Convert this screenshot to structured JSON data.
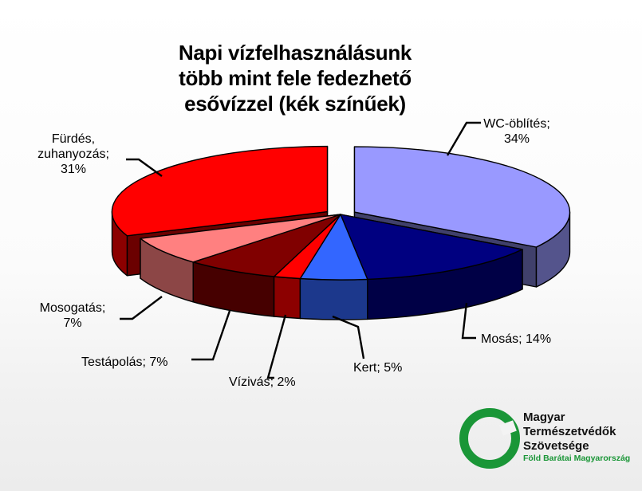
{
  "chart_data": {
    "type": "pie",
    "title": [
      "Napi vízfelhasználásunk",
      "több mint fele fedezhető",
      "esővízzel (kék színűek)"
    ],
    "slices": [
      {
        "name": "WC-öblítés",
        "value": 34,
        "label": [
          "WC-öblítés;",
          "34%"
        ],
        "color": "#9999ff",
        "exploded": true
      },
      {
        "name": "Mosás",
        "value": 14,
        "label": [
          "Mosás; 14%"
        ],
        "color": "#000080",
        "exploded": false
      },
      {
        "name": "Kert",
        "value": 5,
        "label": [
          "Kert; 5%"
        ],
        "color": "#3366ff",
        "exploded": false
      },
      {
        "name": "Vízivás",
        "value": 2,
        "label": [
          "Vízivás; 2%"
        ],
        "color": "#ff0000",
        "exploded": false
      },
      {
        "name": "Testápolás",
        "value": 7,
        "label": [
          "Testápolás; 7%"
        ],
        "color": "#800000",
        "exploded": false
      },
      {
        "name": "Mosogatás",
        "value": 7,
        "label": [
          "Mosogatás;",
          "7%"
        ],
        "color": "#ff8080",
        "exploded": false
      },
      {
        "name": "Fürdés, zuhanyozás",
        "value": 31,
        "label": [
          "Fürdés,",
          "zuhanyozás;",
          "31%"
        ],
        "color": "#ff0000",
        "exploded": true
      }
    ]
  },
  "logo": {
    "lines": [
      "Magyar",
      "Természetvédők",
      "Szövetsége"
    ],
    "tagline": "Föld Barátai Magyarország",
    "color": "#1a9637"
  }
}
